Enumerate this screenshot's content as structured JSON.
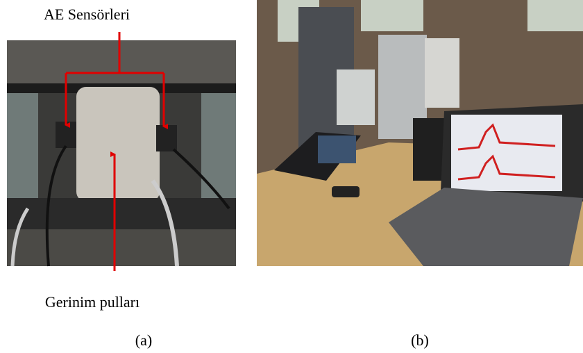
{
  "labels": {
    "sensors": "AE Sensörleri",
    "strain": "Gerinim pulları"
  },
  "captions": {
    "a": "(a)",
    "b": "(b)"
  }
}
